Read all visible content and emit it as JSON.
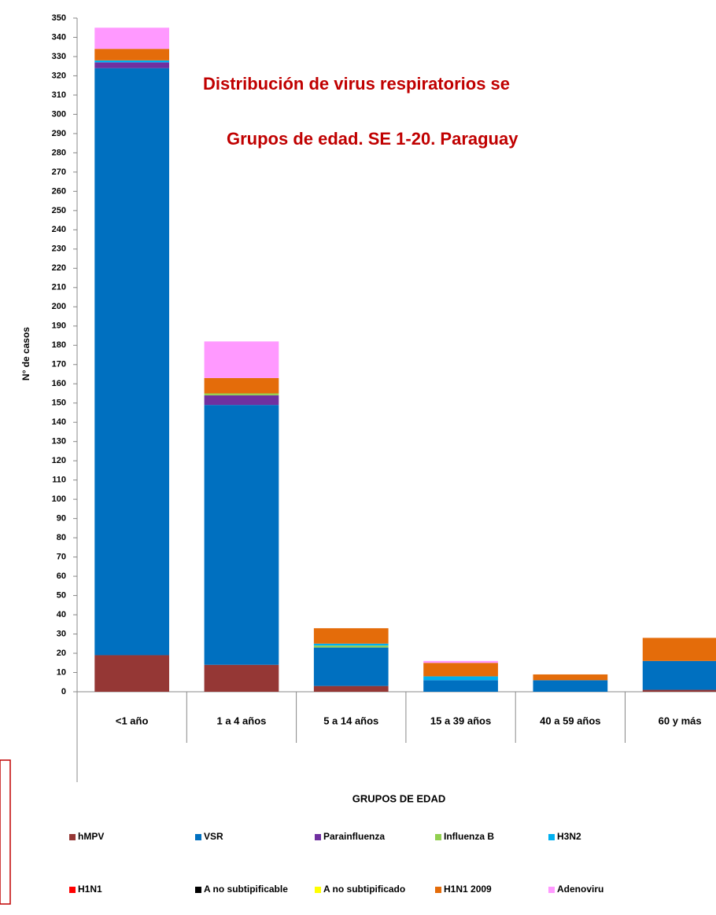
{
  "chart_data": {
    "type": "stacked_bar",
    "title": "Distribución  de virus respiratorios se",
    "subtitle": "Grupos  de edad. SE 1-20. Paraguay",
    "ylabel": "N° de casos",
    "xlabel": "GRUPOS DE EDAD",
    "categories": [
      "<1 año",
      "1 a 4 años",
      "5 a 14 años",
      "15 a 39 años",
      "40 a 59 años",
      "60 y más"
    ],
    "series": [
      {
        "name": "hMPV",
        "color": "#953735",
        "values": [
          19,
          14,
          3,
          0,
          0,
          1
        ]
      },
      {
        "name": "VSR",
        "color": "#0070c0",
        "values": [
          305,
          135,
          20,
          6,
          6,
          15
        ]
      },
      {
        "name": "Parainfluenza",
        "color": "#7030a0",
        "values": [
          3,
          5,
          0,
          0,
          0,
          0
        ]
      },
      {
        "name": "Influenza  B",
        "color": "#92d050",
        "values": [
          0,
          1,
          1,
          0,
          0,
          0
        ]
      },
      {
        "name": "H3N2",
        "color": "#00b0f0",
        "values": [
          1,
          0,
          1,
          2,
          0,
          0
        ]
      },
      {
        "name": "H1N1",
        "color": "#ff0000",
        "values": [
          0,
          0,
          0,
          0,
          0,
          0
        ]
      },
      {
        "name": "A no subtipificable",
        "color": "#000000",
        "values": [
          0,
          0,
          0,
          0,
          0,
          0
        ]
      },
      {
        "name": "A no subtipificado",
        "color": "#ffff00",
        "values": [
          0,
          0,
          0,
          0,
          0,
          0
        ]
      },
      {
        "name": "H1N1 2009",
        "color": "#e46c0a",
        "values": [
          6,
          8,
          8,
          7,
          3,
          12
        ]
      },
      {
        "name": "Adenoviru",
        "color": "#ff99ff",
        "values": [
          11,
          19,
          0,
          1,
          0,
          0
        ]
      }
    ],
    "ylim": [
      0,
      350
    ],
    "yticks": [
      0,
      10,
      20,
      30,
      40,
      50,
      60,
      70,
      80,
      90,
      100,
      110,
      120,
      130,
      140,
      150,
      160,
      170,
      180,
      190,
      200,
      210,
      220,
      230,
      240,
      250,
      260,
      270,
      280,
      290,
      300,
      310,
      320,
      330,
      340,
      350
    ]
  }
}
